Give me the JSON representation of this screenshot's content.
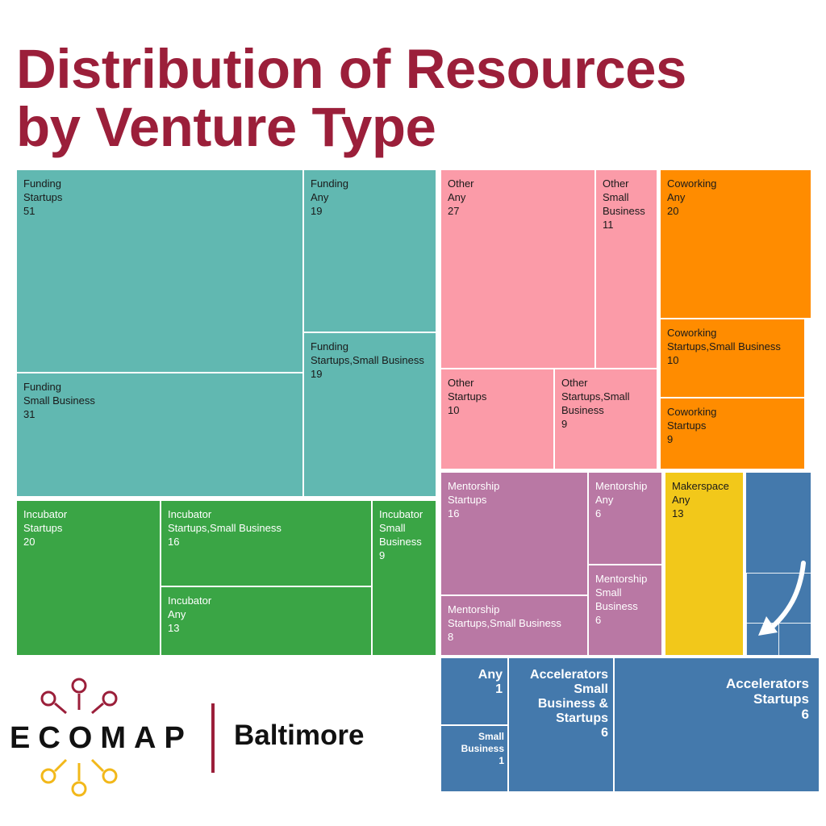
{
  "title_line1": "Distribution of Resources",
  "title_line2": "by Venture Type",
  "brand": {
    "logo_text": "ECOMAP",
    "city": "Baltimore",
    "divider_color": "#9b1f3a"
  },
  "colors": {
    "Funding": "#61b8b1",
    "Other": "#fb9ba8",
    "Coworking": "#ff8c00",
    "Incubator": "#3aa545",
    "Mentorship": "#b978a4",
    "Makerspace": "#f2c81a",
    "Accelerators": "#4479ac",
    "title": "#9b1f3a"
  },
  "chart_data": {
    "type": "treemap",
    "title": "Distribution of Resources by Venture Type",
    "data": [
      {
        "category": "Funding",
        "venture_type": "Startups",
        "count": 51
      },
      {
        "category": "Funding",
        "venture_type": "Any",
        "count": 19
      },
      {
        "category": "Funding",
        "venture_type": "Startups,Small Business",
        "count": 19
      },
      {
        "category": "Funding",
        "venture_type": "Small Business",
        "count": 31
      },
      {
        "category": "Other",
        "venture_type": "Any",
        "count": 27
      },
      {
        "category": "Other",
        "venture_type": "Small Business",
        "count": 11
      },
      {
        "category": "Other",
        "venture_type": "Startups",
        "count": 10
      },
      {
        "category": "Other",
        "venture_type": "Startups,Small Business",
        "count": 9
      },
      {
        "category": "Coworking",
        "venture_type": "Any",
        "count": 20
      },
      {
        "category": "Coworking",
        "venture_type": "Startups,Small Business",
        "count": 10
      },
      {
        "category": "Coworking",
        "venture_type": "Startups",
        "count": 9
      },
      {
        "category": "Incubator",
        "venture_type": "Startups",
        "count": 20
      },
      {
        "category": "Incubator",
        "venture_type": "Startups,Small Business",
        "count": 16
      },
      {
        "category": "Incubator",
        "venture_type": "Any",
        "count": 13
      },
      {
        "category": "Incubator",
        "venture_type": "Small Business",
        "count": 9
      },
      {
        "category": "Mentorship",
        "venture_type": "Startups",
        "count": 16
      },
      {
        "category": "Mentorship",
        "venture_type": "Any",
        "count": 6
      },
      {
        "category": "Mentorship",
        "venture_type": "Small Business",
        "count": 6
      },
      {
        "category": "Mentorship",
        "venture_type": "Startups,Small Business",
        "count": 8
      },
      {
        "category": "Makerspace",
        "venture_type": "Any",
        "count": 13
      },
      {
        "category": "Accelerators",
        "venture_type": "Any",
        "count": 1
      },
      {
        "category": "Accelerators",
        "venture_type": "Small Business",
        "count": 1
      },
      {
        "category": "Accelerators",
        "venture_type": "Small Business & Startups",
        "count": 6
      },
      {
        "category": "Accelerators",
        "venture_type": "Startups",
        "count": 6
      }
    ]
  }
}
